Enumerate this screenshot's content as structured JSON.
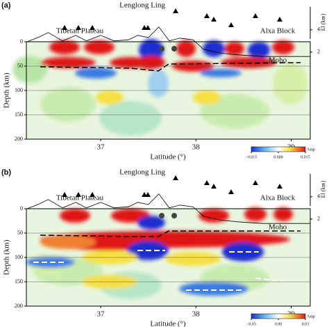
{
  "chart_data": [
    {
      "type": "section",
      "label": "(a)",
      "title": "Lenglong Ling",
      "xlabel": "Latitude (°)",
      "ylabel": "Depth (km)",
      "y2label": "El (km)",
      "annotations": [
        "Tibetan Plateau",
        "Alxa Block",
        "Moho"
      ],
      "xlim": [
        36.22,
        39.2
      ],
      "xticks": [
        37,
        38,
        39
      ],
      "ylim": [
        0,
        200
      ],
      "y_inverted": true,
      "yticks": [
        0,
        50,
        100,
        150,
        200
      ],
      "grid": true,
      "y2lim": [
        0.9,
        4.6
      ],
      "y2ticks": [
        2,
        4
      ],
      "topography": {
        "x": [
          36.22,
          36.34,
          36.45,
          36.6,
          36.74,
          36.85,
          37.0,
          37.14,
          37.29,
          37.39,
          37.5,
          37.61,
          37.72,
          37.83,
          37.97,
          38.08,
          38.26,
          38.44,
          38.7,
          39.2
        ],
        "values": [
          2.9,
          3.3,
          3.75,
          3.0,
          3.5,
          3.0,
          3.5,
          3.0,
          3.1,
          3.5,
          3.3,
          4.25,
          3.0,
          3.25,
          3.1,
          2.25,
          1.9,
          1.75,
          1.6,
          1.6
        ]
      },
      "colorbar": {
        "label": "Amp",
        "ticks": [
          {
            "value": -0.015,
            "label": "−0.015"
          },
          {
            "value": 0,
            "label": "0.000"
          },
          0.015
        ]
      }
    },
    {
      "type": "section",
      "label": "(b)",
      "title": "Lenglong Ling",
      "xlabel": "Latitude (°)",
      "ylabel": "Depth (km)",
      "y2label": "El (km)",
      "annotations": [
        "Tibetan Plateau",
        "Alxa Block",
        "Moho"
      ],
      "xlim": [
        36.22,
        39.2
      ],
      "xticks": [
        37,
        38,
        39
      ],
      "ylim": [
        0,
        200
      ],
      "y_inverted": true,
      "yticks": [
        0,
        50,
        100,
        150,
        200
      ],
      "grid": true,
      "y2lim": [
        0.9,
        4.6
      ],
      "y2ticks": [
        2,
        4
      ],
      "topography": {
        "x": [
          36.22,
          36.34,
          36.45,
          36.6,
          36.74,
          36.85,
          37.0,
          37.14,
          37.29,
          37.39,
          37.5,
          37.61,
          37.72,
          37.83,
          37.97,
          38.08,
          38.26,
          38.44,
          38.7,
          39.2
        ],
        "values": [
          2.9,
          3.3,
          3.75,
          3.0,
          3.5,
          3.0,
          3.5,
          3.0,
          3.1,
          3.5,
          3.3,
          4.25,
          3.0,
          3.25,
          3.1,
          2.25,
          1.9,
          1.75,
          1.6,
          1.6
        ]
      },
      "colorbar": {
        "label": "Amp",
        "ticks": [
          {
            "value": -0.03,
            "label": "−0.03"
          },
          {
            "value": 0,
            "label": "0.00"
          },
          0.03
        ]
      }
    }
  ]
}
